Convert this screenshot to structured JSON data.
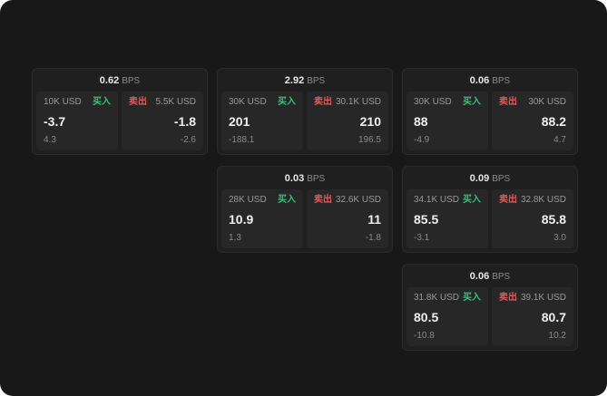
{
  "labels": {
    "bps": "BPS",
    "buy": "买入",
    "sell": "卖出"
  },
  "colors": {
    "background": "#181818",
    "card": "#1f1f1f",
    "panel": "#272727",
    "buy": "#3dbd7d",
    "sell": "#e05c5c"
  },
  "cards": [
    {
      "bps": "0.62",
      "buy": {
        "size": "10K USD",
        "value": "-3.7",
        "delta": "4.3"
      },
      "sell": {
        "size": "5.5K USD",
        "value": "-1.8",
        "delta": "-2.6"
      }
    },
    {
      "bps": "2.92",
      "buy": {
        "size": "30K USD",
        "value": "201",
        "delta": "-188.1"
      },
      "sell": {
        "size": "30.1K USD",
        "value": "210",
        "delta": "196.5"
      }
    },
    {
      "bps": "0.06",
      "buy": {
        "size": "30K USD",
        "value": "88",
        "delta": "-4.9"
      },
      "sell": {
        "size": "30K USD",
        "value": "88.2",
        "delta": "4.7"
      }
    },
    {
      "bps": "0.03",
      "buy": {
        "size": "28K USD",
        "value": "10.9",
        "delta": "1.3"
      },
      "sell": {
        "size": "32.6K USD",
        "value": "11",
        "delta": "-1.8"
      }
    },
    {
      "bps": "0.09",
      "buy": {
        "size": "34.1K USD",
        "value": "85.5",
        "delta": "-3.1"
      },
      "sell": {
        "size": "32.8K USD",
        "value": "85.8",
        "delta": "3.0"
      }
    },
    {
      "bps": "0.06",
      "buy": {
        "size": "31.8K USD",
        "value": "80.5",
        "delta": "-10.8"
      },
      "sell": {
        "size": "39.1K USD",
        "value": "80.7",
        "delta": "10.2"
      }
    }
  ]
}
